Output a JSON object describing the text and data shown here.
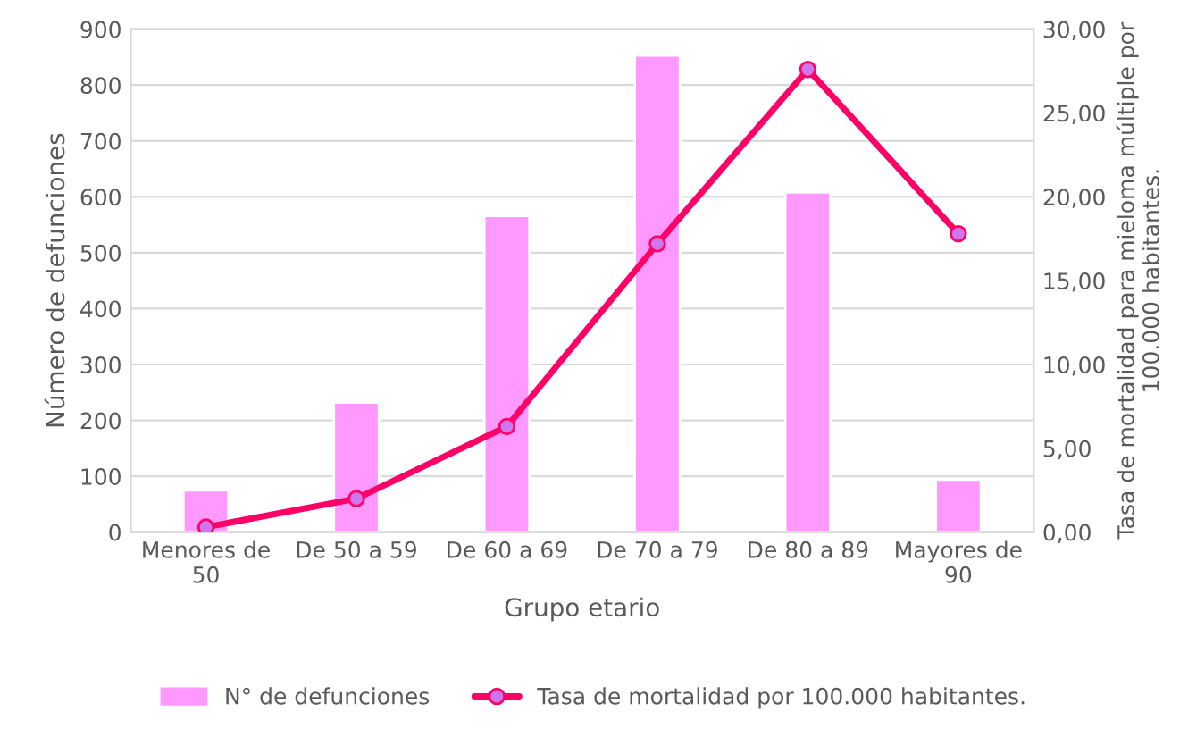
{
  "chart_data": {
    "type": "bar",
    "xlabel": "Grupo etario",
    "ylabel": "Número de defunciones",
    "y2label": "Tasa de mortalidad para mieloma múltiple por 100.000 habitantes.",
    "categories": [
      "Menores de 50",
      "De 50 a 59",
      "De 60 a 69",
      "De 70 a 79",
      "De 80 a 89",
      "Mayores de 90"
    ],
    "series": [
      {
        "name": "N° de defunciones",
        "color": "#ff99ff",
        "values": [
          75,
          232,
          566,
          853,
          608,
          94
        ]
      },
      {
        "name": "Tasa de mortalidad por 100.000 habitantes.",
        "type": "line",
        "axis": "y2",
        "color": "#ff0066",
        "marker": "circle",
        "values": [
          0.3,
          2.0,
          6.3,
          17.2,
          27.6,
          17.8
        ]
      }
    ],
    "ylim": [
      0,
      900
    ],
    "yticks": [
      0,
      100,
      200,
      300,
      400,
      500,
      600,
      700,
      800,
      900
    ],
    "y2lim": [
      0,
      30
    ],
    "y2ticks": [
      {
        "value": 0,
        "label": "0,00"
      },
      {
        "value": 5,
        "label": "5,00"
      },
      {
        "value": 10,
        "label": "10,00"
      },
      {
        "value": 15,
        "label": "15,00"
      },
      {
        "value": 20,
        "label": "20,00"
      },
      {
        "value": 25,
        "label": "25,00"
      },
      {
        "value": 30,
        "label": "30,00"
      }
    ],
    "grid": "y",
    "legend": "bottom"
  }
}
